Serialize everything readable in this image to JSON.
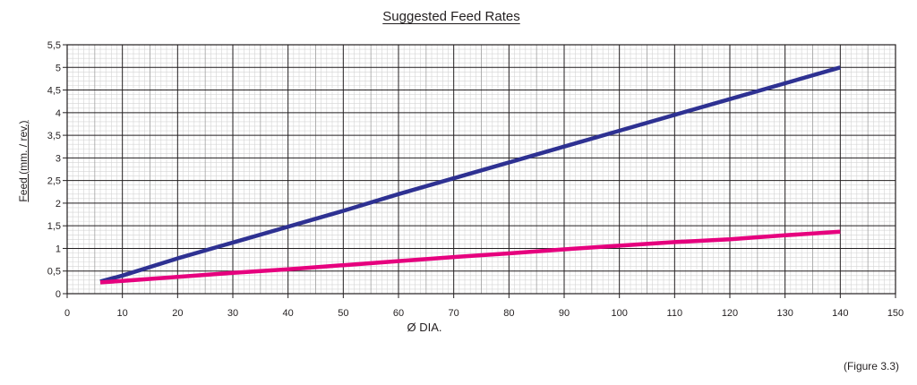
{
  "chart_data": {
    "type": "line",
    "title": "Suggested Feed Rates",
    "xlabel": "Ø DIA.",
    "ylabel": "Feed (mm. / rev.)",
    "xlim": [
      0,
      150
    ],
    "ylim": [
      0,
      5.5
    ],
    "x_ticks": [
      "0",
      "10",
      "20",
      "30",
      "40",
      "50",
      "60",
      "70",
      "80",
      "90",
      "100",
      "110",
      "120",
      "130",
      "140",
      "150"
    ],
    "y_ticks": [
      "0",
      "0,5",
      "1",
      "1,5",
      "2",
      "2,5",
      "3",
      "3,5",
      "4",
      "4,5",
      "5",
      "5,5"
    ],
    "grid": true,
    "legend": "none",
    "series": [
      {
        "color": "#2e3192",
        "x": [
          6,
          10,
          20,
          30,
          40,
          50,
          60,
          70,
          80,
          90,
          100,
          110,
          120,
          130,
          140
        ],
        "y": [
          0.27,
          0.4,
          0.78,
          1.13,
          1.48,
          1.83,
          2.2,
          2.55,
          2.9,
          3.25,
          3.6,
          3.95,
          4.3,
          4.65,
          5.0
        ]
      },
      {
        "color": "#e6007e",
        "x": [
          6,
          10,
          20,
          30,
          40,
          50,
          60,
          70,
          80,
          90,
          100,
          110,
          120,
          130,
          140
        ],
        "y": [
          0.25,
          0.28,
          0.37,
          0.46,
          0.54,
          0.63,
          0.72,
          0.81,
          0.89,
          0.98,
          1.06,
          1.14,
          1.2,
          1.29,
          1.37
        ]
      }
    ]
  },
  "caption": "(Figure 3.3)"
}
